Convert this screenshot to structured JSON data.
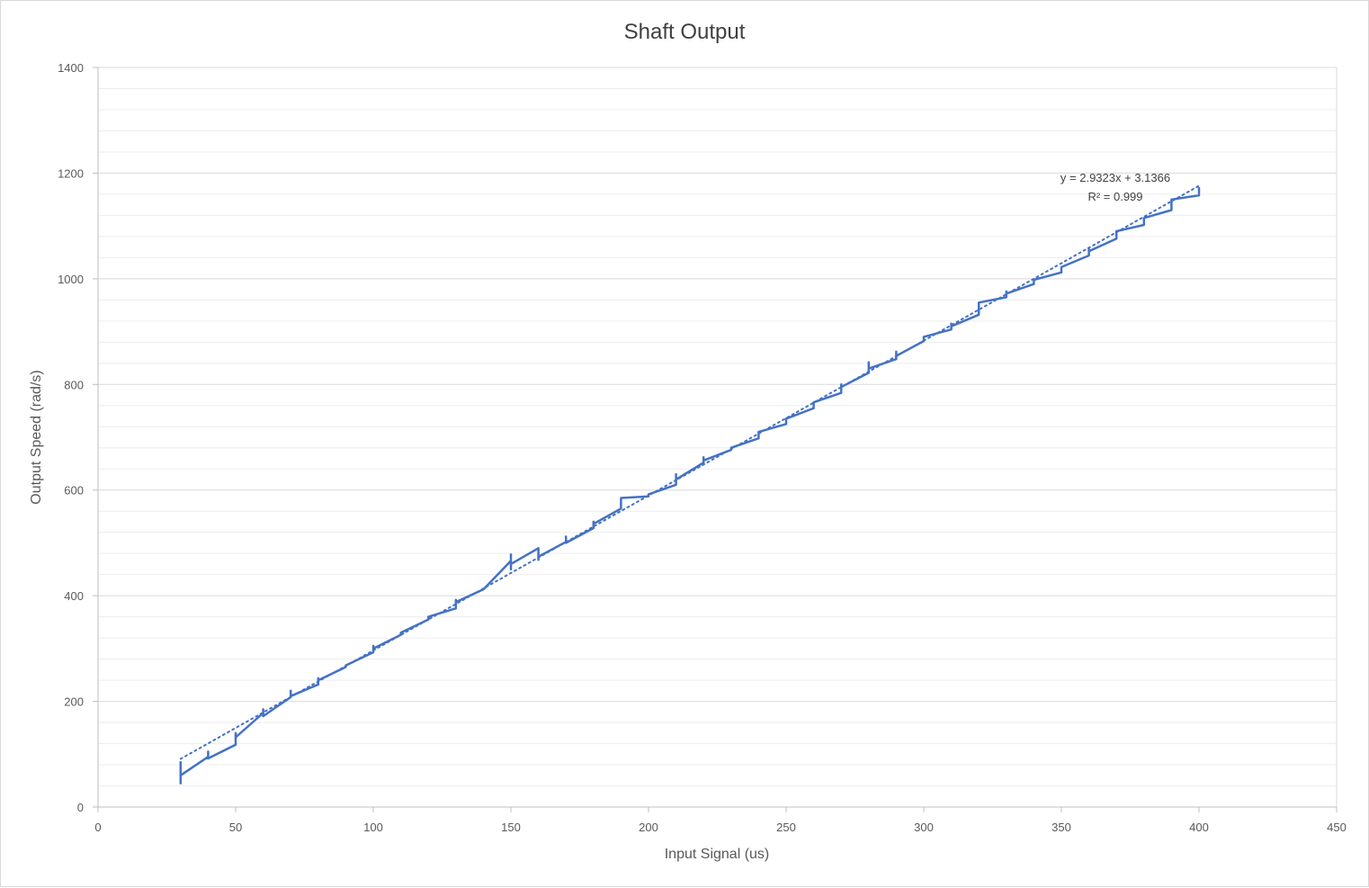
{
  "chart_data": {
    "type": "line",
    "title": "Shaft Output",
    "xlabel": "Input Signal (us)",
    "ylabel": "Output Speed (rad/s)",
    "xlim": [
      0,
      450
    ],
    "ylim": [
      0,
      1400
    ],
    "x_ticks": [
      0,
      50,
      100,
      150,
      200,
      250,
      300,
      350,
      400,
      450
    ],
    "y_ticks": [
      0,
      200,
      400,
      600,
      800,
      1000,
      1200,
      1400
    ],
    "y_minor_step": 40,
    "grid": true,
    "legend": "none",
    "colors": {
      "series": "#4472c4",
      "grid_major": "#d9d9d9",
      "grid_minor": "#ededed",
      "axis": "#bfbfbf"
    },
    "series": [
      {
        "x": [
          30,
          30,
          30,
          30,
          40,
          40,
          40,
          50,
          50,
          50,
          50,
          60,
          60,
          60,
          70,
          70,
          70,
          70,
          80,
          80,
          80,
          90,
          90,
          100,
          100,
          100,
          110,
          110,
          120,
          120,
          130,
          130,
          130,
          130,
          140,
          150,
          150,
          150,
          150,
          160,
          160,
          160,
          170,
          170,
          170,
          180,
          180,
          180,
          190,
          190,
          200,
          200,
          210,
          210,
          210,
          220,
          220,
          220,
          230,
          230,
          240,
          240,
          250,
          250,
          260,
          260,
          270,
          270,
          270,
          280,
          280,
          280,
          280,
          290,
          290,
          290,
          300,
          300,
          310,
          310,
          310,
          320,
          320,
          320,
          330,
          330,
          330,
          340,
          340,
          350,
          350,
          360,
          360,
          360,
          370,
          370,
          380,
          380,
          390,
          390,
          390,
          400,
          400
        ],
        "y": [
          55,
          85,
          45,
          60,
          95,
          105,
          92,
          118,
          140,
          125,
          132,
          178,
          185,
          172,
          208,
          220,
          212,
          210,
          232,
          244,
          240,
          265,
          268,
          293,
          305,
          300,
          326,
          330,
          355,
          360,
          376,
          392,
          385,
          388,
          412,
          466,
          478,
          450,
          460,
          490,
          468,
          474,
          502,
          512,
          500,
          528,
          540,
          536,
          565,
          585,
          588,
          592,
          610,
          630,
          620,
          652,
          662,
          656,
          676,
          680,
          698,
          710,
          725,
          735,
          755,
          766,
          784,
          800,
          795,
          822,
          842,
          828,
          830,
          848,
          862,
          854,
          882,
          890,
          904,
          915,
          910,
          932,
          952,
          955,
          965,
          976,
          972,
          990,
          998,
          1012,
          1022,
          1044,
          1058,
          1052,
          1076,
          1090,
          1102,
          1115,
          1130,
          1148,
          1150,
          1158,
          1172
        ]
      }
    ],
    "trendline": {
      "type": "linear",
      "slope": 2.9323,
      "intercept": 3.1366,
      "x_range": [
        30,
        400
      ],
      "style": "dotted",
      "equation_label": "y = 2.9323x + 3.1366",
      "r2_label": "R² = 0.999"
    }
  }
}
